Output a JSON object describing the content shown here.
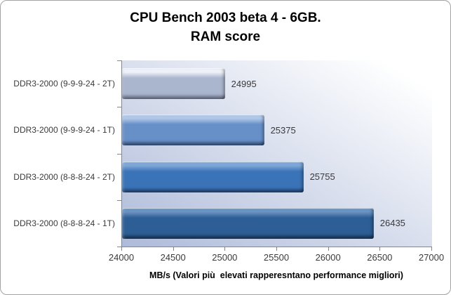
{
  "chart": {
    "title_line1": "CPU Bench 2003 beta 4 - 6GB.",
    "title_line2": "RAM score"
  },
  "chart_data": {
    "type": "bar",
    "orientation": "horizontal",
    "title": "CPU Bench 2003 beta 4 - 6GB. RAM score",
    "categories": [
      "DDR3-2000 (9-9-9-24 - 2T)",
      "DDR3-2000 (9-9-9-24 - 1T)",
      "DDR3-2000 (8-8-8-24 - 2T)",
      "DDR3-2000 (8-8-8-24 - 1T)"
    ],
    "values": [
      24995,
      25375,
      25755,
      26435
    ],
    "value_labels": [
      "24995",
      "25375",
      "25755",
      "26435"
    ],
    "xlabel": "MB/s (Valori più  elevati rapperesntano performance migliori)",
    "xlim": [
      24000,
      27000
    ],
    "x_ticks": [
      24000,
      24500,
      25000,
      25500,
      26000,
      26500,
      27000
    ],
    "x_tick_labels": [
      "24000",
      "24500",
      "25000",
      "25500",
      "26000",
      "26500",
      "27000"
    ],
    "grid": false,
    "legend": false,
    "bar_colors": [
      {
        "highlight": "#eef2f8",
        "base": "#aab5ce",
        "dark": "#848fab"
      },
      {
        "highlight": "#b0c7e8",
        "base": "#6890c8",
        "dark": "#41649b"
      },
      {
        "highlight": "#7ea7d7",
        "base": "#3b73b8",
        "dark": "#27528c"
      },
      {
        "highlight": "#6b93c2",
        "base": "#2d5e95",
        "dark": "#1c426e"
      }
    ],
    "plot_bg_gradient": [
      "#adbad9",
      "#ffffff"
    ],
    "axis_line_color": "#868686",
    "label_color": "#3a3a3a",
    "border_color": "#a3a3a3"
  }
}
